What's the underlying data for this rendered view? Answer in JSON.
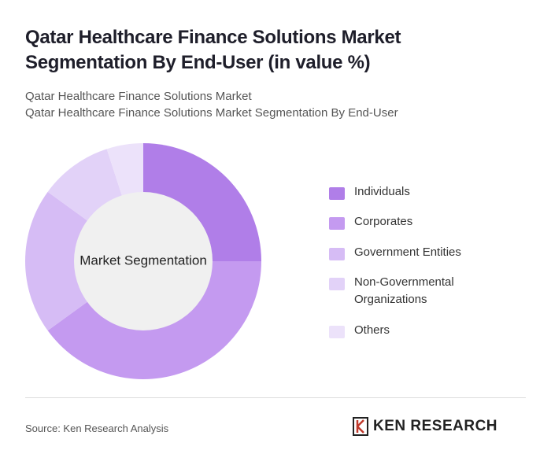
{
  "chart_data": {
    "type": "donut",
    "title": "Qatar Healthcare Finance Solutions Market Segmentation By End-User (in value %)",
    "subtitle": "Qatar Healthcare Finance Solutions Market",
    "subtitle_2": "Qatar Healthcare Finance Solutions Market Segmentation By End-User",
    "center_label": "Market Segmentation",
    "categories": [
      "Individuals",
      "Corporates",
      "Government Entities",
      "Non-Governmental Organizations",
      "Others"
    ],
    "values": [
      25,
      40,
      20,
      10,
      5
    ],
    "colors": [
      "#b07ee8",
      "#c49af0",
      "#d6bcf5",
      "#e2d2f8",
      "#ece2fa"
    ],
    "source": "Source: Ken Research Analysis"
  },
  "logo": "KEN RESEARCH"
}
